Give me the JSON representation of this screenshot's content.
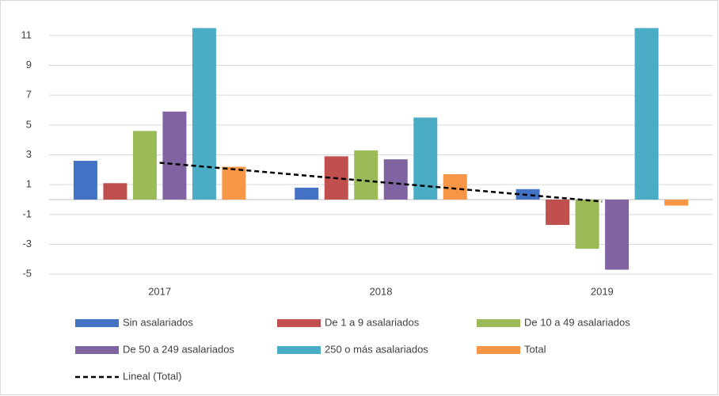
{
  "chart_data": {
    "type": "bar",
    "categories": [
      "2017",
      "2018",
      "2019"
    ],
    "series": [
      {
        "name": "Sin asalariados",
        "color": "#4472c4",
        "values": [
          2.6,
          0.8,
          0.7
        ]
      },
      {
        "name": "De 1 a 9 asalariados",
        "color": "#c0504d",
        "values": [
          1.1,
          2.9,
          -1.7
        ]
      },
      {
        "name": "De 10 a 49 asalariados",
        "color": "#9bbb59",
        "values": [
          4.6,
          3.3,
          -3.3
        ]
      },
      {
        "name": "De 50 a 249 asalariados",
        "color": "#8064a2",
        "values": [
          5.9,
          2.7,
          -4.7
        ]
      },
      {
        "name": "250 o más asalariados",
        "color": "#4bacc6",
        "values": [
          11.5,
          5.5,
          11.5
        ]
      },
      {
        "name": "Total",
        "color": "#f79646",
        "values": [
          2.2,
          1.7,
          -0.4
        ]
      }
    ],
    "trendline": {
      "name": "Lineal (Total)",
      "color": "#000000",
      "dashed": true,
      "values": [
        2.47,
        1.17,
        -0.13
      ]
    },
    "ylim": [
      -6,
      12
    ],
    "yticks": [
      -5,
      -3,
      -1,
      1,
      3,
      5,
      7,
      9,
      11
    ],
    "grid": true
  }
}
